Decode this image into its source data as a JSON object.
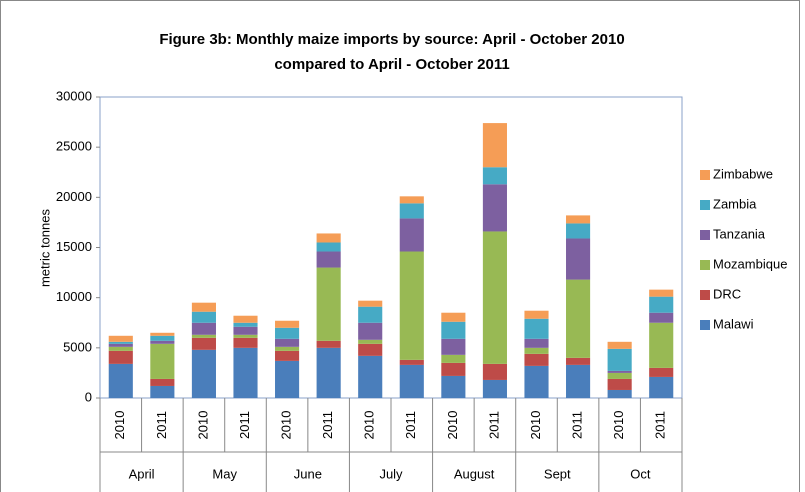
{
  "chart_data": {
    "type": "stacked_bar",
    "title": [
      "Figure  3b: Monthly maize imports by source: April - October 2010",
      "compared to April - October 2011"
    ],
    "y_label": "metric tonnes",
    "categories": [
      "2010",
      "2011",
      "2010",
      "2011",
      "2010",
      "2011",
      "2010",
      "2011",
      "2010",
      "2011",
      "2010",
      "2011",
      "2010",
      "2011"
    ],
    "groups": [
      "April",
      "May",
      "June",
      "July",
      "August",
      "Sept",
      "Oct"
    ],
    "series": [
      {
        "name": "Malawi",
        "color": "#4a7ebb",
        "values": [
          3400,
          1200,
          4800,
          5000,
          3700,
          5000,
          4200,
          3300,
          2200,
          1800,
          3200,
          3300,
          800,
          2100
        ]
      },
      {
        "name": "DRC",
        "color": "#be4b48",
        "values": [
          1300,
          700,
          1200,
          1000,
          1000,
          700,
          1200,
          500,
          1300,
          1600,
          1200,
          700,
          1100,
          900
        ]
      },
      {
        "name": "Mozambique",
        "color": "#98b954",
        "values": [
          400,
          3500,
          300,
          300,
          400,
          7300,
          400,
          10800,
          800,
          13200,
          600,
          7800,
          600,
          4500
        ]
      },
      {
        "name": "Tanzania",
        "color": "#7d60a0",
        "values": [
          300,
          300,
          1200,
          800,
          800,
          1600,
          1700,
          3300,
          1600,
          4700,
          900,
          4100,
          200,
          1000
        ]
      },
      {
        "name": "Zambia",
        "color": "#46aac5",
        "values": [
          200,
          500,
          1100,
          400,
          1100,
          900,
          1600,
          1500,
          1700,
          1700,
          2000,
          1500,
          2200,
          1600
        ]
      },
      {
        "name": "Zimbabwe",
        "color": "#f59d56",
        "values": [
          600,
          300,
          900,
          700,
          700,
          900,
          600,
          700,
          900,
          4400,
          800,
          800,
          700,
          700
        ]
      }
    ],
    "ylim": [
      0,
      30000
    ],
    "yticks": [
      0,
      5000,
      10000,
      15000,
      20000,
      25000,
      30000
    ],
    "legend": "right",
    "grid": false
  }
}
